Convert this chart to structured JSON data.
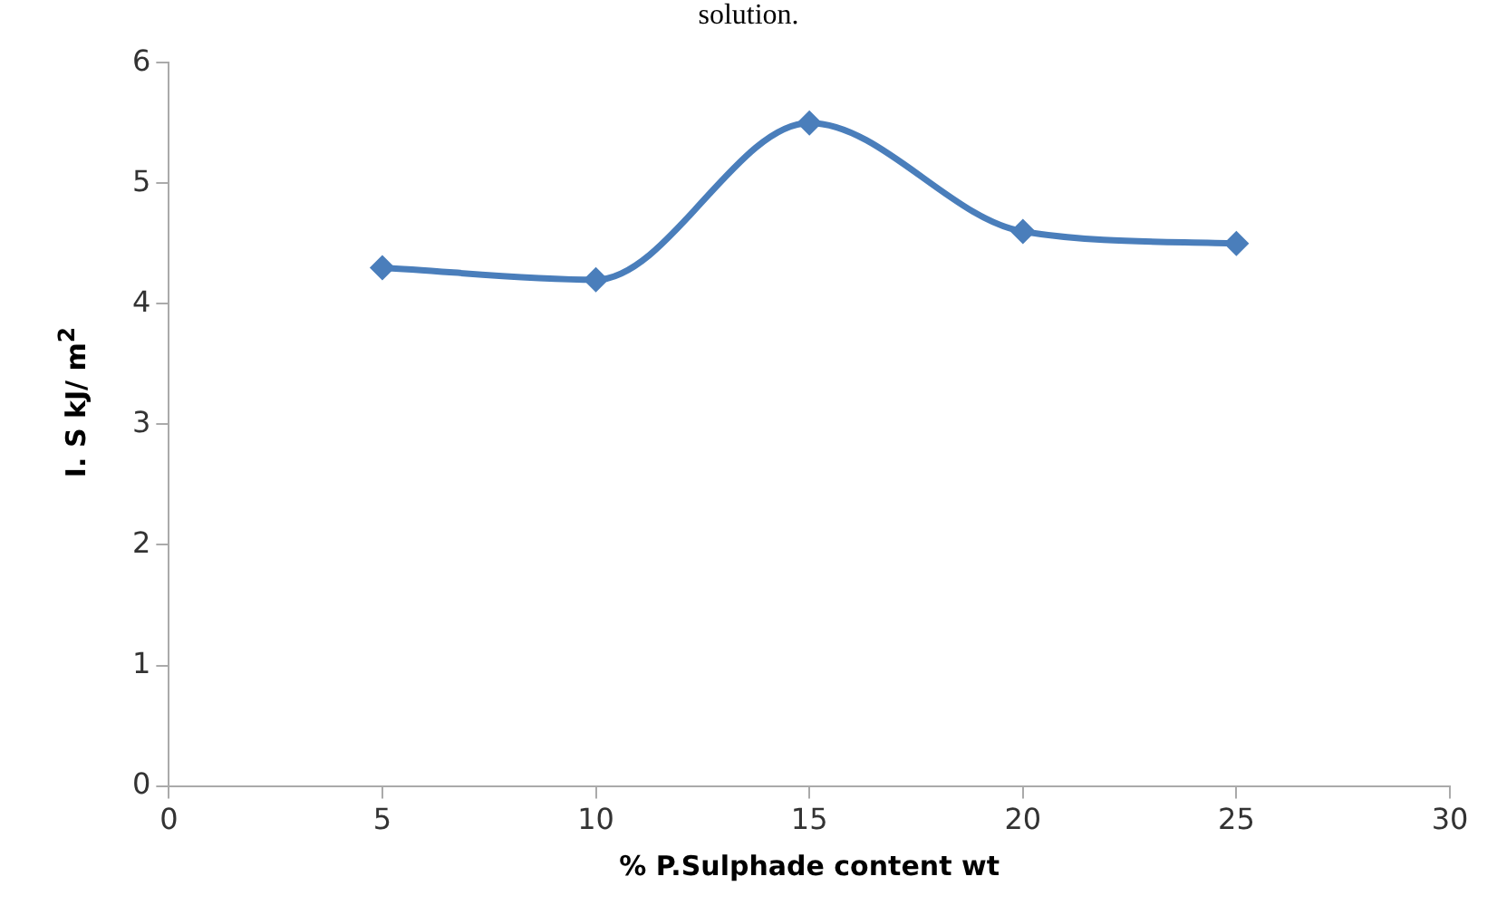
{
  "chart_data": {
    "type": "line",
    "annotations": [
      "solution."
    ],
    "xlabel": "% P.Sulphade content wt",
    "ylabel": "I. S kJ/ m$^{2}$",
    "x": [
      5,
      10,
      15,
      20,
      25
    ],
    "series": [
      {
        "color": "#4a7ebb",
        "values": [
          4.3,
          4.2,
          5.5,
          4.6,
          4.5
        ]
      }
    ],
    "xlim": [
      0,
      30
    ],
    "xticks": [
      0,
      5,
      10,
      15,
      20,
      25,
      30
    ],
    "ylim": [
      0,
      6
    ],
    "yticks": [
      0,
      1,
      2,
      3,
      4,
      5,
      6
    ],
    "grid": false,
    "legend": false,
    "marker": "diamond",
    "line_style": "solid"
  }
}
